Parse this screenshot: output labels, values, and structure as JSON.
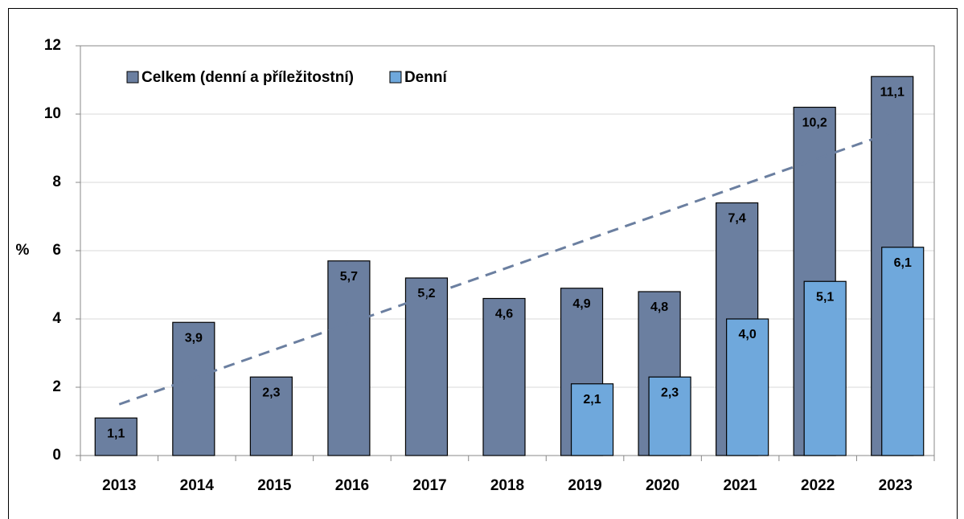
{
  "chart_data": {
    "type": "bar",
    "y_label": "%",
    "categories": [
      "2013",
      "2014",
      "2015",
      "2016",
      "2017",
      "2018",
      "2019",
      "2020",
      "2021",
      "2022",
      "2023"
    ],
    "series": [
      {
        "name": "Celkem (denní a příležitostní)",
        "color": "#6b7fa0",
        "values": [
          1.1,
          3.9,
          2.3,
          5.7,
          5.2,
          4.6,
          4.9,
          4.8,
          7.4,
          10.2,
          11.1
        ],
        "value_labels": [
          "1,1",
          "3,9",
          "2,3",
          "5,7",
          "5,2",
          "4,6",
          "4,9",
          "4,8",
          "7,4",
          "10,2",
          "11,1"
        ]
      },
      {
        "name": "Denní",
        "color": "#6fa8dc",
        "values": [
          null,
          null,
          null,
          null,
          null,
          null,
          2.1,
          2.3,
          4.0,
          5.1,
          6.1
        ],
        "value_labels": [
          null,
          null,
          null,
          null,
          null,
          null,
          "2,1",
          "2,3",
          "4,0",
          "5,1",
          "6,1"
        ]
      }
    ],
    "trendline": {
      "values": [
        1.5,
        9.5
      ],
      "color": "#6b7fa0"
    },
    "ylim": [
      0,
      12
    ],
    "yticks": [
      0,
      2,
      4,
      6,
      8,
      10,
      12
    ],
    "grid": true,
    "legend": "top-left"
  }
}
